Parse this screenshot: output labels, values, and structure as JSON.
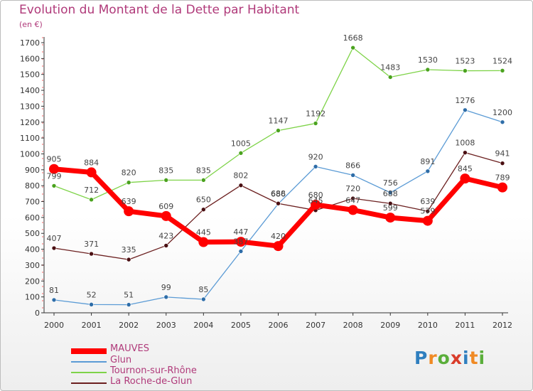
{
  "title": "Evolution du Montant de la Dette par Habitant",
  "subtitle": "(en €)",
  "logo": {
    "letters": [
      "P",
      "r",
      "o",
      "x",
      "i",
      "t",
      "i"
    ],
    "colors": [
      "#2f7fbf",
      "#f08a24",
      "#5aae3a",
      "#d93c2a",
      "#2f7fbf",
      "#f08a24",
      "#5aae3a"
    ]
  },
  "chart_data": {
    "type": "line",
    "title": "Evolution du Montant de la Dette par Habitant",
    "ylabel": "(en €)",
    "xlabel": "",
    "ylim": [
      0,
      1700
    ],
    "yticks": [
      0,
      100,
      200,
      300,
      400,
      500,
      600,
      700,
      800,
      900,
      1000,
      1100,
      1200,
      1300,
      1400,
      1500,
      1600,
      1700
    ],
    "categories": [
      "2000",
      "2001",
      "2002",
      "2003",
      "2004",
      "2005",
      "2006",
      "2007",
      "2008",
      "2009",
      "2010",
      "2011",
      "2012"
    ],
    "grid": false,
    "legend_position": "bottom-left",
    "series": [
      {
        "name": "MAUVES",
        "color": "#ff0000",
        "values": [
          905,
          884,
          639,
          609,
          445,
          447,
          420,
          680,
          647,
          599,
          579,
          845,
          789
        ]
      },
      {
        "name": "Glun",
        "color": "#5b9bd5",
        "values": [
          81,
          52,
          51,
          99,
          85,
          387,
          686,
          920,
          866,
          756,
          891,
          1276,
          1200
        ]
      },
      {
        "name": "Tournon-sur-Rhône",
        "color": "#7ed348",
        "values": [
          799,
          712,
          820,
          835,
          835,
          1005,
          1147,
          1192,
          1668,
          1483,
          1530,
          1523,
          1524
        ]
      },
      {
        "name": "La Roche-de-Glun",
        "color": "#6b1f1f",
        "values": [
          407,
          371,
          335,
          423,
          650,
          802,
          688,
          645,
          720,
          688,
          639,
          1008,
          941
        ]
      }
    ]
  }
}
